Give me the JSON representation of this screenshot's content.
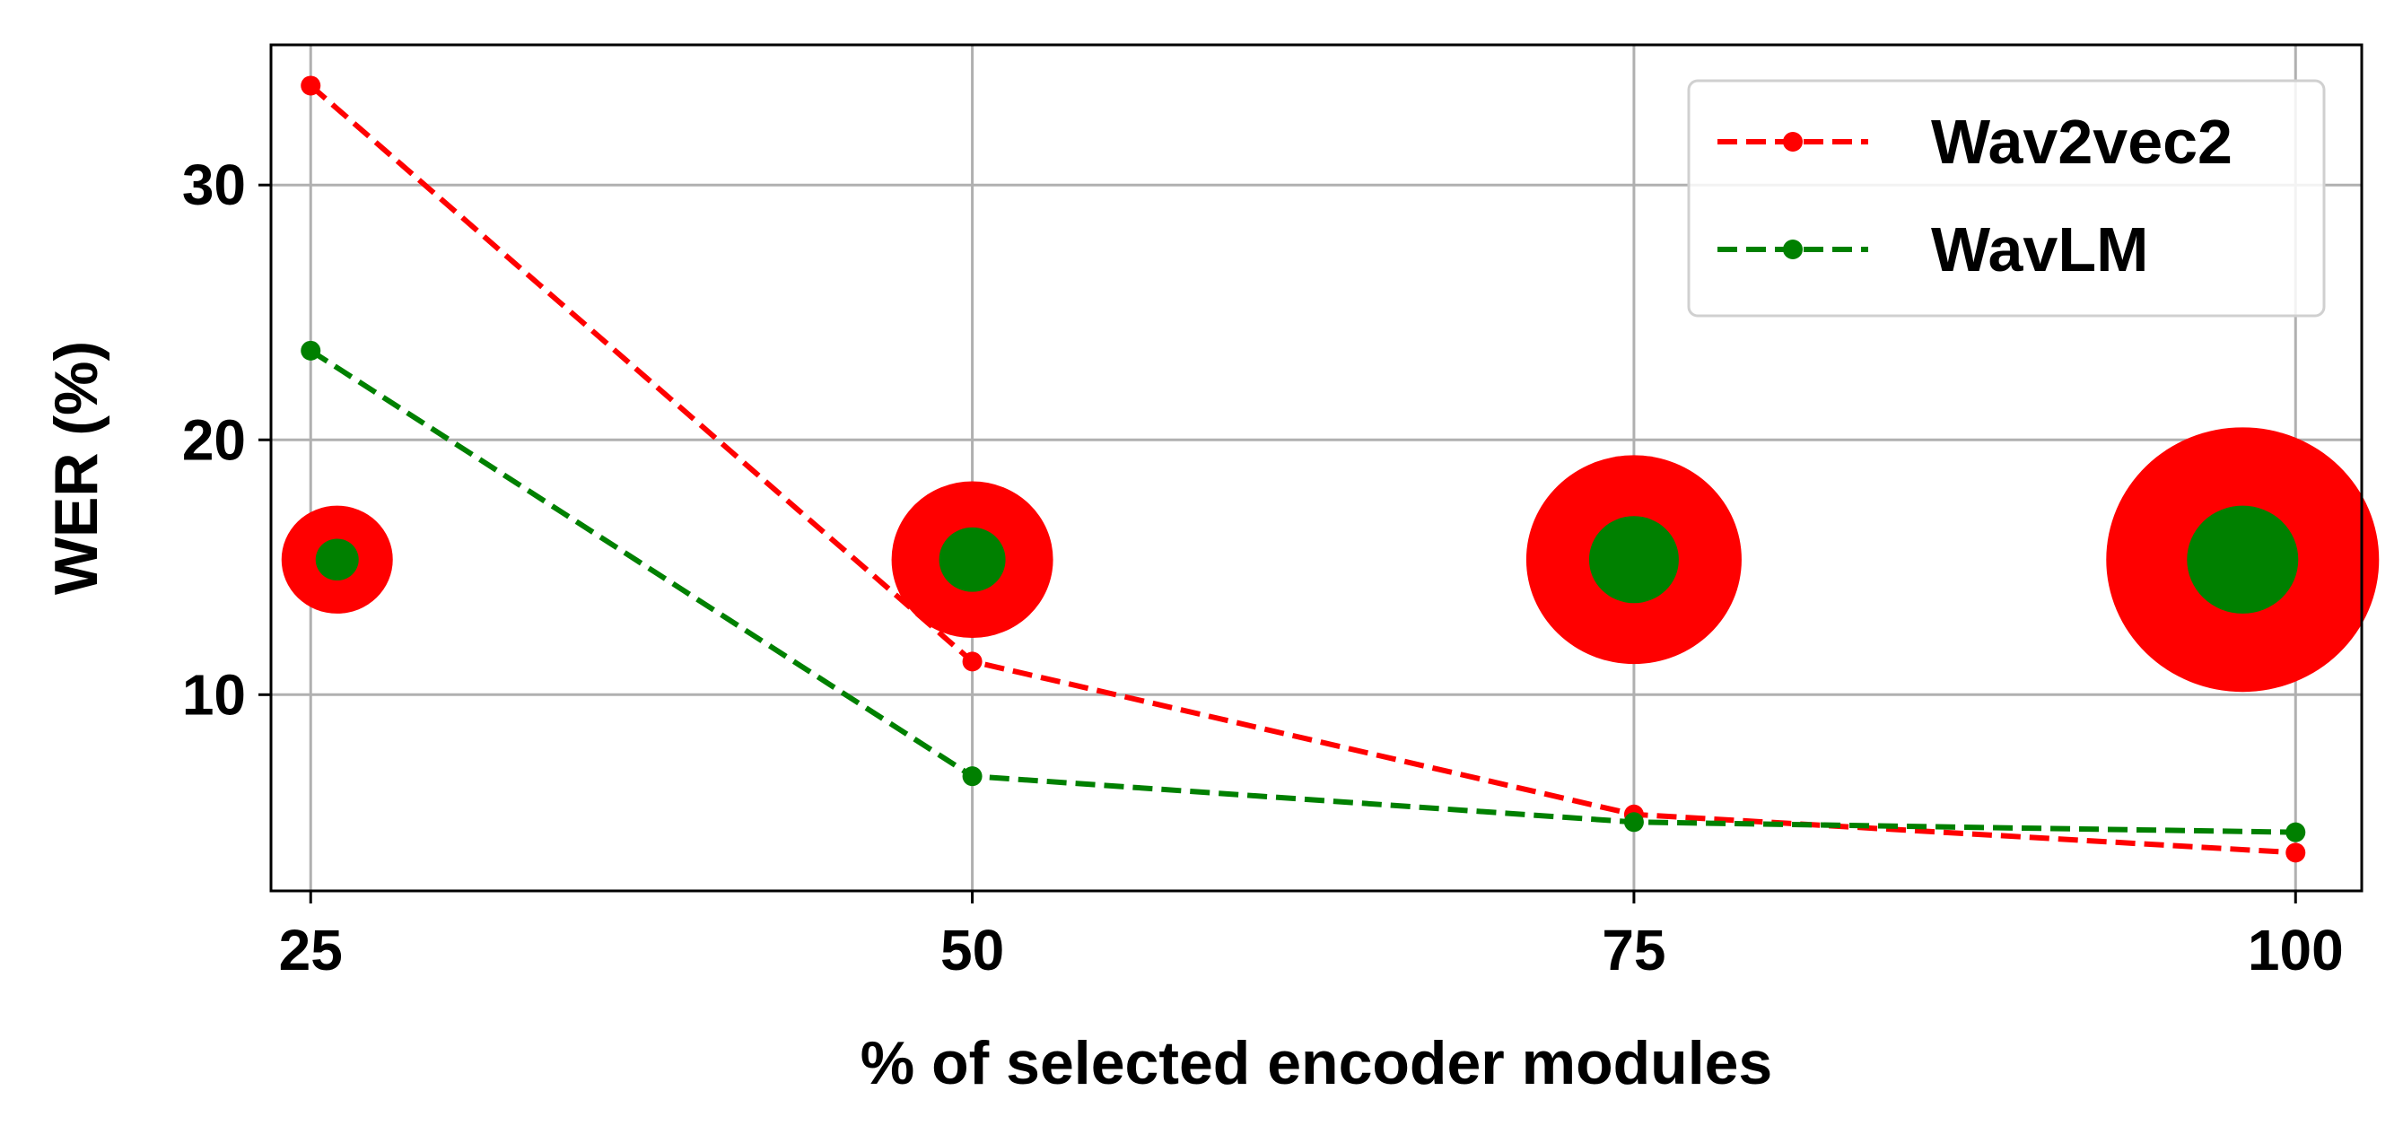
{
  "chart_data": {
    "type": "line",
    "title": "",
    "xlabel": "% of selected encoder modules",
    "ylabel": "WER (%)",
    "x": [
      25,
      50,
      75,
      100
    ],
    "xlim": [
      23.5,
      102.5
    ],
    "ylim": [
      2.3,
      35.5
    ],
    "xticks": [
      25,
      50,
      75,
      100
    ],
    "yticks": [
      10,
      20,
      30
    ],
    "grid": true,
    "legend_position": "top-right",
    "series": [
      {
        "name": "Wav2vec2",
        "color": "#ff0000",
        "line_style": "dashed",
        "marker": "circle",
        "values": [
          33.9,
          11.3,
          5.3,
          3.8
        ]
      },
      {
        "name": "WavLM",
        "color": "#008000",
        "line_style": "dashed",
        "marker": "circle",
        "values": [
          23.5,
          6.8,
          5.0,
          4.6
        ]
      }
    ],
    "size_markers": [
      {
        "x": 26,
        "y": 15.3,
        "outer_color": "#ff0000",
        "inner_color": "#008000",
        "outer_level": 1,
        "inner_level": 1
      },
      {
        "x": 50,
        "y": 15.3,
        "outer_color": "#ff0000",
        "inner_color": "#008000",
        "outer_level": 2,
        "inner_level": 2
      },
      {
        "x": 75,
        "y": 15.3,
        "outer_color": "#ff0000",
        "inner_color": "#008000",
        "outer_level": 3,
        "inner_level": 3
      },
      {
        "x": 98,
        "y": 15.3,
        "outer_color": "#ff0000",
        "inner_color": "#008000",
        "outer_level": 4,
        "inner_level": 4
      }
    ]
  }
}
